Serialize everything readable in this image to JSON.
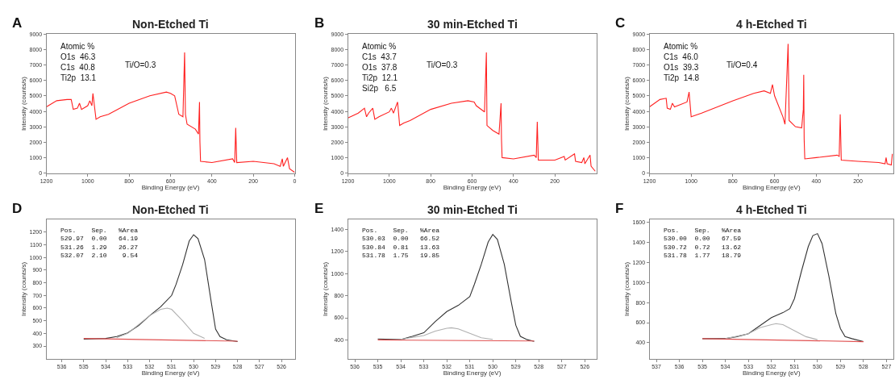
{
  "chart_data": [
    {
      "type": "line",
      "title": "Non-Etched Ti",
      "xlabel": "Binding Energy (eV)",
      "ylabel": "Intensity (counts/s)",
      "xlim": [
        1200,
        0
      ],
      "xticks": [
        1200,
        1000,
        800,
        600,
        400,
        200,
        0
      ],
      "ylim": [
        0,
        9000
      ],
      "yticks": [
        0,
        1000,
        2000,
        3000,
        4000,
        5000,
        6000,
        7000,
        8000,
        9000
      ],
      "annotations": [
        "A",
        "Atomic %\nO1s  46.3\nC1s  40.8\nTi2p  13.1",
        "Ti/O=0.3"
      ],
      "series": [
        {
          "color": "#ff2020",
          "x": [
            1200,
            1150,
            1100,
            1080,
            1070,
            1050,
            1040,
            1030,
            1000,
            990,
            980,
            975,
            960,
            940,
            900,
            800,
            700,
            620,
            600,
            580,
            560,
            540,
            532,
            528,
            520,
            480,
            465,
            460,
            458,
            455,
            400,
            300,
            290,
            285,
            280,
            200,
            100,
            70,
            60,
            55,
            35,
            25,
            0
          ],
          "values": [
            4290,
            4690,
            4770,
            4770,
            4130,
            4210,
            4530,
            4130,
            4370,
            4690,
            4370,
            5170,
            3490,
            3650,
            3810,
            4530,
            5010,
            5250,
            5170,
            5010,
            3810,
            3650,
            7810,
            3810,
            3170,
            2850,
            2530,
            4610,
            2050,
            770,
            690,
            930,
            690,
            2930,
            690,
            770,
            610,
            450,
            930,
            450,
            1010,
            290,
            50
          ]
        }
      ]
    },
    {
      "type": "line",
      "title": "30 min-Etched Ti",
      "xlabel": "Binding Energy (eV)",
      "ylabel": "Intensity (counts/s)",
      "xlim": [
        1200,
        0
      ],
      "xticks": [
        1200,
        1000,
        800,
        600,
        400,
        200
      ],
      "ylim": [
        0,
        9000
      ],
      "yticks": [
        0,
        1000,
        2000,
        3000,
        4000,
        5000,
        6000,
        7000,
        8000,
        9000
      ],
      "annotations": [
        "B",
        "Atomic %\nC1s  43.7\nO1s  37.8\nTi2p  12.1\nSi2p   6.5",
        "Ti/O=0.3"
      ],
      "series": [
        {
          "color": "#ff2020",
          "x": [
            1200,
            1150,
            1120,
            1110,
            1100,
            1080,
            1070,
            1050,
            1000,
            990,
            980,
            960,
            950,
            930,
            900,
            800,
            700,
            620,
            590,
            580,
            540,
            531,
            528,
            500,
            470,
            460,
            458,
            455,
            400,
            300,
            290,
            285,
            280,
            200,
            155,
            150,
            105,
            100,
            70,
            60,
            55,
            30,
            25,
            5
          ],
          "values": [
            3570,
            3890,
            4210,
            3650,
            3890,
            4210,
            3490,
            3650,
            3970,
            4210,
            3890,
            4610,
            3090,
            3250,
            3410,
            4130,
            4530,
            4690,
            4610,
            4370,
            3970,
            7810,
            3090,
            2770,
            2530,
            4530,
            2210,
            1010,
            930,
            1170,
            1010,
            3330,
            850,
            850,
            1090,
            850,
            1250,
            770,
            690,
            1010,
            610,
            1170,
            450,
            130
          ]
        }
      ]
    },
    {
      "type": "line",
      "title": "4 h-Etched Ti",
      "xlabel": "Binding Energy (eV)",
      "ylabel": "Intensity (counts/s)",
      "xlim": [
        1200,
        30
      ],
      "xticks": [
        1200,
        1000,
        800,
        600,
        400,
        200
      ],
      "ylim": [
        0,
        9000
      ],
      "yticks": [
        0,
        1000,
        2000,
        3000,
        4000,
        5000,
        6000,
        7000,
        8000,
        9000
      ],
      "annotations": [
        "C",
        "Atomic %\nC1s  46.0\nO1s  39.3\nTi2p  14.8",
        "Ti/O=0.4"
      ],
      "series": [
        {
          "color": "#ff2020",
          "x": [
            1200,
            1150,
            1120,
            1115,
            1100,
            1090,
            1080,
            1050,
            1020,
            1010,
            1000,
            950,
            800,
            700,
            650,
            620,
            610,
            600,
            560,
            550,
            535,
            530,
            500,
            470,
            462,
            460,
            458,
            455,
            400,
            300,
            290,
            285,
            280,
            200,
            100,
            70,
            65,
            60,
            40,
            35
          ],
          "values": [
            4290,
            4770,
            4850,
            4210,
            4130,
            4530,
            4290,
            4450,
            4610,
            5250,
            3650,
            3890,
            4690,
            5170,
            5330,
            5170,
            5730,
            5010,
            3650,
            3170,
            8370,
            3410,
            3010,
            2930,
            4130,
            6370,
            2210,
            930,
            1010,
            1170,
            1090,
            3810,
            850,
            770,
            690,
            610,
            1010,
            610,
            530,
            1250
          ]
        }
      ]
    },
    {
      "type": "line",
      "title": "Non-Etched Ti",
      "xlabel": "Binding Energy (eV)",
      "ylabel": "Intensity (counts/s)",
      "xlim": [
        536.7,
        525.4
      ],
      "xticks": [
        536,
        535,
        534,
        533,
        532,
        531,
        530,
        529,
        528,
        527,
        526
      ],
      "ylim": [
        200,
        1300
      ],
      "yticks": [
        300,
        400,
        500,
        600,
        700,
        800,
        900,
        1000,
        1100,
        1200
      ],
      "annotations": [
        "D",
        "Pos.    Sep.   %Area\n529.97  0.00   64.19\n531.26  1.29   26.27\n532.07  2.10    9.54"
      ],
      "series": [
        {
          "color": "#333333",
          "x": [
            535,
            534,
            533.5,
            533,
            532.5,
            532,
            531.5,
            531,
            530.8,
            530.5,
            530.2,
            530,
            529.8,
            529.5,
            529.2,
            529,
            528.8,
            528.5,
            528
          ],
          "values": [
            355,
            360,
            375,
            404,
            463,
            540,
            610,
            700,
            787,
            944,
            1131,
            1180,
            1150,
            984,
            650,
            434,
            375,
            349,
            335
          ]
        },
        {
          "color": "#b0b0b0",
          "x": [
            533.5,
            533,
            532.5,
            532,
            531.5,
            531.2,
            531,
            530.5,
            530,
            529.5
          ],
          "values": [
            365,
            400,
            470,
            540,
            590,
            600,
            590,
            500,
            400,
            360
          ]
        },
        {
          "color": "#e05050",
          "x": [
            535,
            528
          ],
          "values": [
            360,
            338
          ]
        }
      ]
    },
    {
      "type": "line",
      "title": "30 min-Etched Ti",
      "xlabel": "Binding Energy (eV)",
      "ylabel": "Intensity (counts/s)",
      "xlim": [
        536.3,
        525.5
      ],
      "xticks": [
        536,
        535,
        534,
        533,
        532,
        531,
        530,
        529,
        528,
        527,
        526
      ],
      "ylim": [
        230,
        1490
      ],
      "yticks": [
        400,
        600,
        800,
        1000,
        1200,
        1400
      ],
      "annotations": [
        "E",
        "Pos.    Sep.   %Area\n530.03  0.00   66.52\n530.84  0.81   13.63\n531.78  1.75   19.85"
      ],
      "series": [
        {
          "color": "#333333",
          "x": [
            535,
            534,
            533.5,
            533,
            532.5,
            532,
            531.5,
            531,
            530.8,
            530.5,
            530.2,
            530,
            529.8,
            529.5,
            529.2,
            529,
            528.8,
            528.5,
            528.2
          ],
          "values": [
            409,
            402,
            432,
            465,
            567,
            657,
            713,
            792,
            904,
            1085,
            1287,
            1355,
            1310,
            1085,
            747,
            533,
            432,
            402,
            386
          ]
        },
        {
          "color": "#b0b0b0",
          "x": [
            534,
            533,
            532.5,
            532,
            531.8,
            531.5,
            531,
            530.5,
            530
          ],
          "values": [
            405,
            440,
            480,
            505,
            510,
            500,
            460,
            420,
            405
          ]
        },
        {
          "color": "#e05050",
          "x": [
            535,
            528.2
          ],
          "values": [
            400,
            390
          ]
        }
      ]
    },
    {
      "type": "line",
      "title": "4 h-Etched Ti",
      "xlabel": "Binding Energy (eV)",
      "ylabel": "Intensity (counts/s)",
      "xlim": [
        537.3,
        526.7
      ],
      "xticks": [
        537,
        536,
        535,
        534,
        533,
        532,
        531,
        530,
        529,
        528,
        527
      ],
      "ylim": [
        240,
        1630
      ],
      "yticks": [
        400,
        600,
        800,
        1000,
        1200,
        1400,
        1600
      ],
      "annotations": [
        "F",
        "Pos.    Sep.   %Area\n530.00  0.00   67.59\n530.72  0.72   13.62\n531.78  1.77   18.79"
      ],
      "series": [
        {
          "color": "#333333",
          "x": [
            535,
            534,
            533.5,
            533,
            532.5,
            532,
            531.5,
            531.2,
            531,
            530.7,
            530.4,
            530.2,
            530,
            529.8,
            529.5,
            529.2,
            529,
            528.8,
            528.5,
            528
          ],
          "values": [
            440,
            440,
            460,
            490,
            570,
            650,
            700,
            740,
            840,
            1110,
            1360,
            1470,
            1490,
            1390,
            1060,
            690,
            540,
            460,
            440,
            410
          ]
        },
        {
          "color": "#b0b0b0",
          "x": [
            534,
            533,
            532.5,
            532,
            531.8,
            531.5,
            531,
            530.5,
            530
          ],
          "values": [
            440,
            490,
            550,
            580,
            590,
            580,
            520,
            460,
            430
          ]
        },
        {
          "color": "#e05050",
          "x": [
            535,
            528
          ],
          "values": [
            440,
            410
          ]
        }
      ]
    }
  ]
}
